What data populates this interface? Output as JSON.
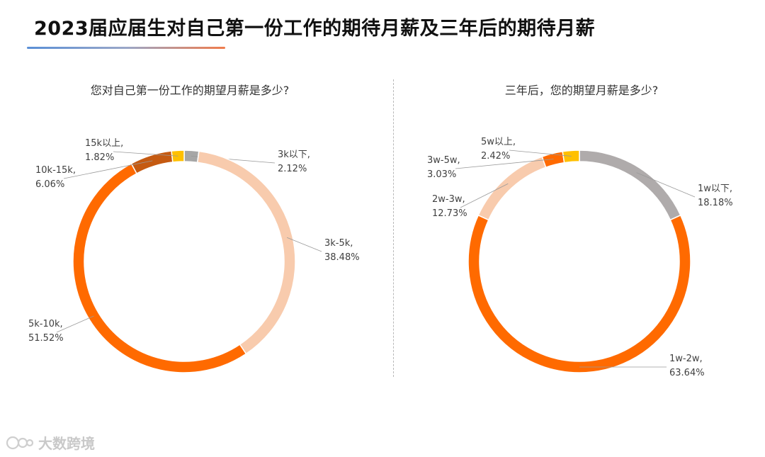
{
  "page": {
    "title": "2023届应届生对自己第一份工作的期待月薪及三年后的期待月薪",
    "watermark": "大数跨境"
  },
  "colors": {
    "underline_start": "#5a8fd6",
    "underline_end": "#f07c4c",
    "slice_stroke": "#ffffff"
  },
  "chart_data": [
    {
      "type": "pie",
      "variant": "donut",
      "title": "您对自己第一份工作的期望月薪是多少?",
      "slices": [
        {
          "name": "3k以下",
          "value": 2.12,
          "label": "2.12%",
          "color": "#a6a6a6"
        },
        {
          "name": "3k-5k",
          "value": 38.48,
          "label": "38.48%",
          "color": "#f8cbad"
        },
        {
          "name": "5k-10k",
          "value": 51.52,
          "label": "51.52%",
          "color": "#ff6a00"
        },
        {
          "name": "10k-15k",
          "value": 6.06,
          "label": "6.06%",
          "color": "#c55a11"
        },
        {
          "name": "15k以上",
          "value": 1.82,
          "label": "1.82%",
          "color": "#ffc000"
        }
      ]
    },
    {
      "type": "pie",
      "variant": "donut",
      "title": "三年后，您的期望月薪是多少?",
      "slices": [
        {
          "name": "1w以下",
          "value": 18.18,
          "label": "18.18%",
          "color": "#afabab"
        },
        {
          "name": "1w-2w",
          "value": 63.64,
          "label": "63.64%",
          "color": "#ff6a00"
        },
        {
          "name": "2w-3w",
          "value": 12.73,
          "label": "12.73%",
          "color": "#f8cbad"
        },
        {
          "name": "3w-5w",
          "value": 3.03,
          "label": "3.03%",
          "color": "#ff6a00"
        },
        {
          "name": "5w以上",
          "value": 2.42,
          "label": "2.42%",
          "color": "#ffc000"
        }
      ]
    }
  ]
}
